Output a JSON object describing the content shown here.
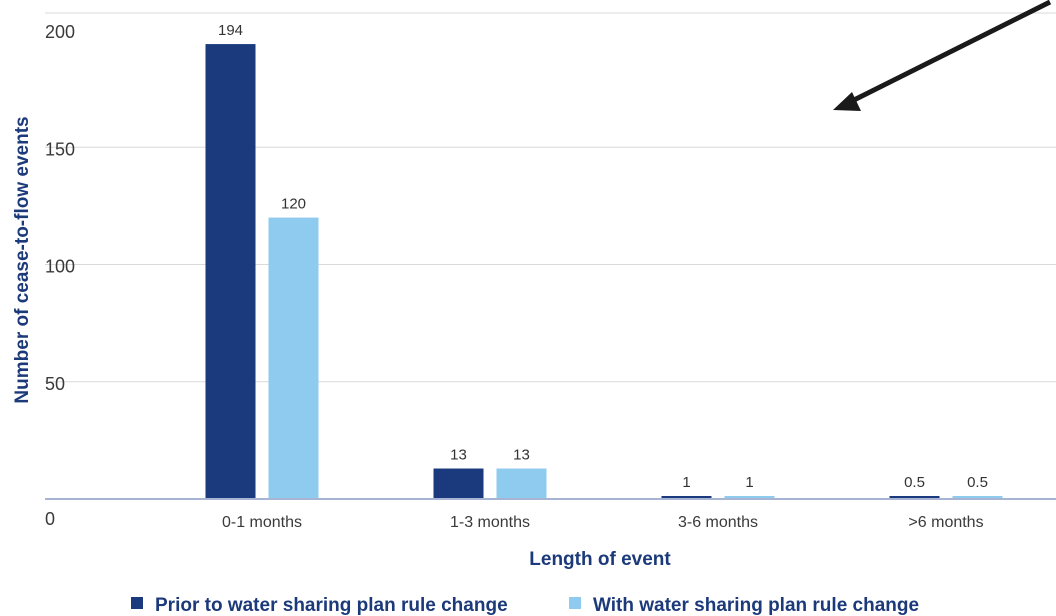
{
  "chart_data": {
    "type": "bar",
    "categories": [
      "0-1 months",
      "1-3 months",
      "3-6 months",
      ">6 months"
    ],
    "series": [
      {
        "name": "Prior to water sharing plan rule change",
        "values": [
          194,
          13,
          1,
          0.5
        ],
        "labels": [
          "194",
          "13",
          "1",
          "0.5"
        ]
      },
      {
        "name": "With water sharing plan rule change",
        "values": [
          120,
          13,
          1,
          0.5
        ],
        "labels": [
          "120",
          "13",
          "1",
          "0.5"
        ]
      }
    ],
    "xlabel": "Length of event",
    "ylabel": "Number of cease-to-flow events",
    "y_ticks": [
      "0",
      "50",
      "100",
      "150",
      "200"
    ],
    "ylim": [
      0,
      200
    ],
    "grid": true,
    "legend": "bottom",
    "colors": {
      "series_0": "#1b3a7e",
      "series_1": "#8ecbef",
      "grid": "#d9d9d9",
      "axis": "#a7b4d4",
      "title": "#1c3a7a",
      "arrow": "#1a1a1a"
    },
    "annotation": "arrow-icon"
  }
}
